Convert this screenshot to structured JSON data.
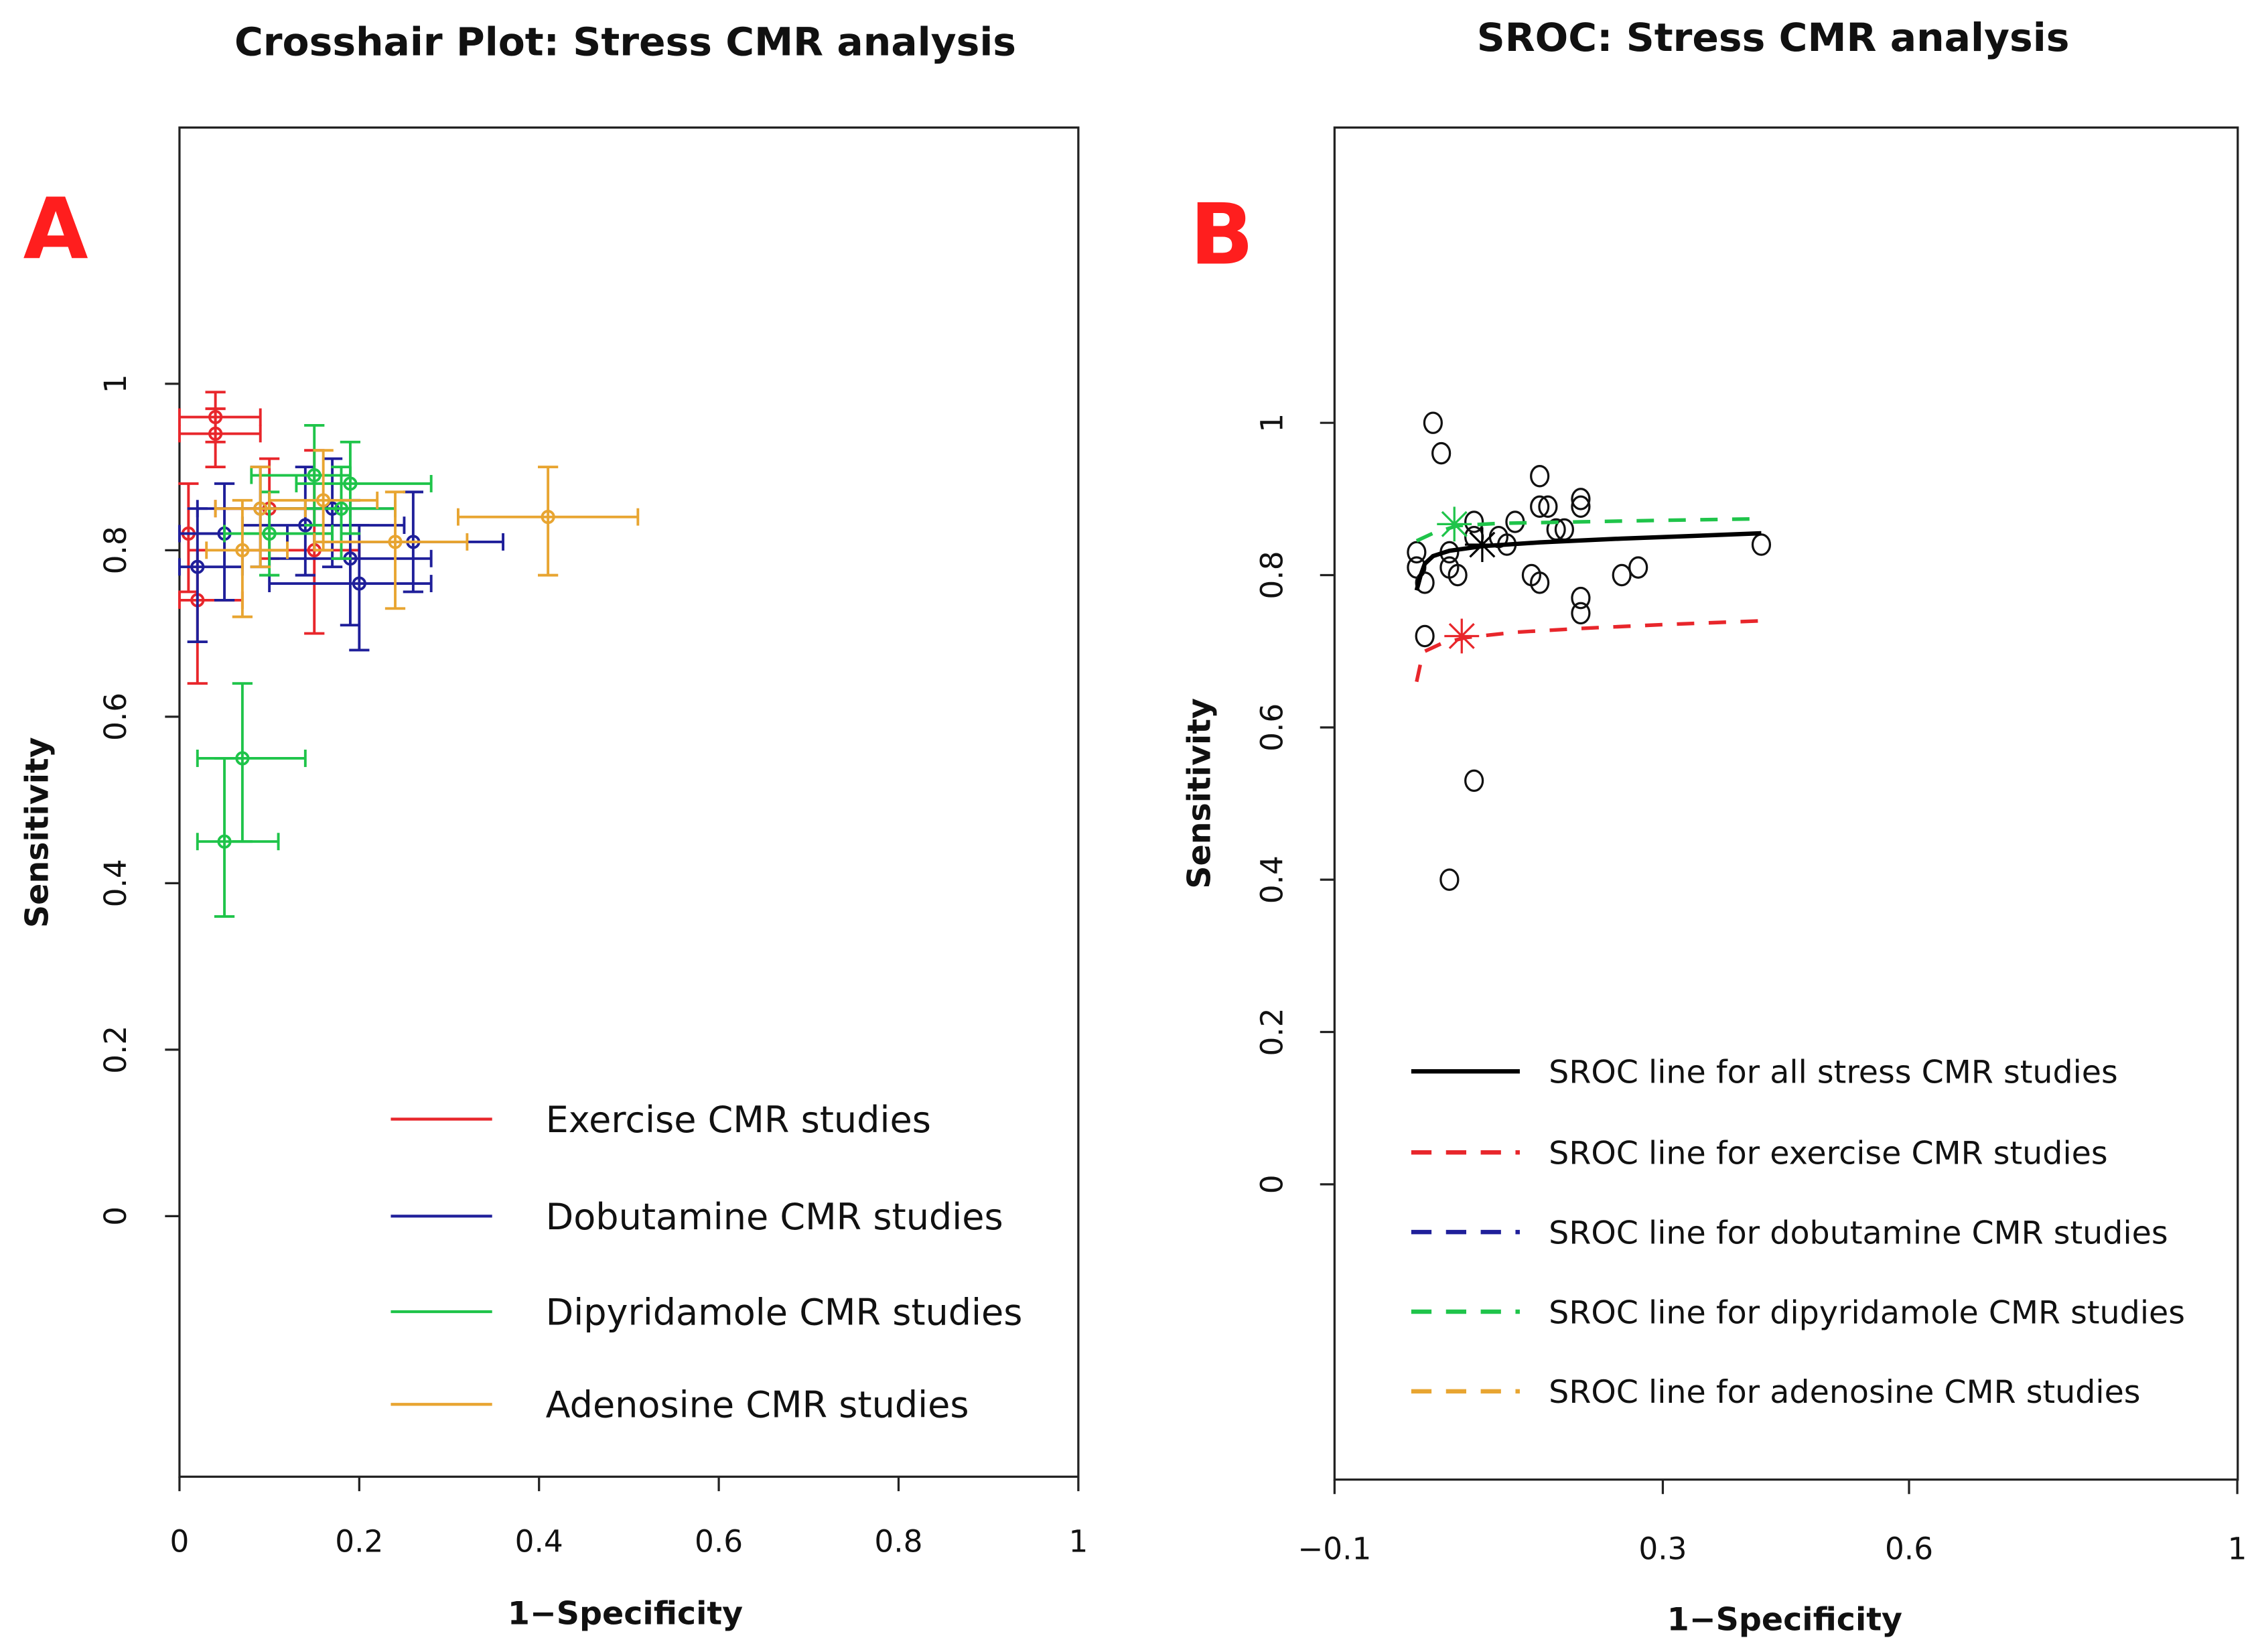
{
  "chart_data": [
    {
      "type": "scatter",
      "panel_label": "A",
      "title": "Crosshair Plot: Stress CMR analysis",
      "xlabel": "1−Specificity",
      "ylabel": "Sensitivity",
      "xlim": [
        0,
        1
      ],
      "ylim": [
        -0.3,
        1.3
      ],
      "xticks": [
        "0",
        "0.2",
        "0.4",
        "0.6",
        "0.8",
        "1"
      ],
      "xtick_values": [
        0,
        0.2,
        0.4,
        0.6,
        0.8,
        1
      ],
      "yticks": [
        "0",
        "0.2",
        "0.4",
        "0.6",
        "0.8",
        "1"
      ],
      "ytick_values": [
        0,
        0.2,
        0.4,
        0.6,
        0.8,
        1
      ],
      "legend_position": "bottom-right",
      "series": [
        {
          "name": "Exercise CMR studies",
          "color": "#e8262b",
          "points": [
            {
              "x": 0.04,
              "y": 0.96,
              "xci": [
                0.0,
                0.09
              ],
              "yci": [
                0.93,
                0.99
              ]
            },
            {
              "x": 0.04,
              "y": 0.94,
              "xci": [
                0.0,
                0.09
              ],
              "yci": [
                0.9,
                0.97
              ]
            },
            {
              "x": 0.15,
              "y": 0.8,
              "xci": [
                0.07,
                0.2
              ],
              "yci": [
                0.7,
                0.92
              ]
            },
            {
              "x": 0.02,
              "y": 0.74,
              "xci": [
                0.0,
                0.07
              ],
              "yci": [
                0.64,
                0.8
              ]
            },
            {
              "x": 0.1,
              "y": 0.85,
              "xci": [
                0.04,
                0.19
              ],
              "yci": [
                0.79,
                0.91
              ]
            },
            {
              "x": 0.01,
              "y": 0.82,
              "xci": [
                0.0,
                0.05
              ],
              "yci": [
                0.75,
                0.88
              ]
            }
          ]
        },
        {
          "name": "Dobutamine CMR studies",
          "color": "#1f1f9a",
          "points": [
            {
              "x": 0.05,
              "y": 0.82,
              "xci": [
                0.0,
                0.12
              ],
              "yci": [
                0.74,
                0.88
              ]
            },
            {
              "x": 0.09,
              "y": 0.85,
              "xci": [
                0.02,
                0.18
              ],
              "yci": [
                0.78,
                0.9
              ]
            },
            {
              "x": 0.17,
              "y": 0.85,
              "xci": [
                0.1,
                0.24
              ],
              "yci": [
                0.78,
                0.91
              ]
            },
            {
              "x": 0.26,
              "y": 0.81,
              "xci": [
                0.15,
                0.36
              ],
              "yci": [
                0.75,
                0.87
              ]
            },
            {
              "x": 0.19,
              "y": 0.79,
              "xci": [
                0.1,
                0.28
              ],
              "yci": [
                0.71,
                0.86
              ]
            },
            {
              "x": 0.2,
              "y": 0.76,
              "xci": [
                0.1,
                0.28
              ],
              "yci": [
                0.68,
                0.83
              ]
            },
            {
              "x": 0.02,
              "y": 0.78,
              "xci": [
                0.0,
                0.07
              ],
              "yci": [
                0.69,
                0.85
              ]
            },
            {
              "x": 0.14,
              "y": 0.83,
              "xci": [
                0.07,
                0.25
              ],
              "yci": [
                0.77,
                0.9
              ]
            }
          ]
        },
        {
          "name": "Dipyridamole CMR studies",
          "color": "#1fc44a",
          "points": [
            {
              "x": 0.07,
              "y": 0.55,
              "xci": [
                0.02,
                0.14
              ],
              "yci": [
                0.45,
                0.64
              ]
            },
            {
              "x": 0.05,
              "y": 0.45,
              "xci": [
                0.02,
                0.11
              ],
              "yci": [
                0.36,
                0.55
              ]
            },
            {
              "x": 0.15,
              "y": 0.89,
              "xci": [
                0.08,
                0.19
              ],
              "yci": [
                0.83,
                0.95
              ]
            },
            {
              "x": 0.19,
              "y": 0.88,
              "xci": [
                0.13,
                0.28
              ],
              "yci": [
                0.82,
                0.93
              ]
            },
            {
              "x": 0.18,
              "y": 0.85,
              "xci": [
                0.1,
                0.24
              ],
              "yci": [
                0.79,
                0.9
              ]
            },
            {
              "x": 0.1,
              "y": 0.82,
              "xci": [
                0.05,
                0.17
              ],
              "yci": [
                0.77,
                0.87
              ]
            }
          ]
        },
        {
          "name": "Adenosine CMR studies",
          "color": "#e8a531",
          "points": [
            {
              "x": 0.41,
              "y": 0.84,
              "xci": [
                0.31,
                0.51
              ],
              "yci": [
                0.77,
                0.9
              ]
            },
            {
              "x": 0.24,
              "y": 0.81,
              "xci": [
                0.15,
                0.32
              ],
              "yci": [
                0.73,
                0.87
              ]
            },
            {
              "x": 0.07,
              "y": 0.8,
              "xci": [
                0.03,
                0.12
              ],
              "yci": [
                0.72,
                0.86
              ]
            },
            {
              "x": 0.09,
              "y": 0.85,
              "xci": [
                0.04,
                0.14
              ],
              "yci": [
                0.78,
                0.9
              ]
            },
            {
              "x": 0.16,
              "y": 0.86,
              "xci": [
                0.1,
                0.22
              ],
              "yci": [
                0.8,
                0.92
              ]
            }
          ]
        }
      ]
    },
    {
      "type": "line",
      "panel_label": "B",
      "title": "SROC: Stress CMR analysis",
      "xlabel": "1−Specificity",
      "ylabel": "Sensitivity",
      "xlim": [
        -0.1,
        1
      ],
      "ylim": [
        -0.39,
        1.39
      ],
      "xticks": [
        "−0.1",
        "0.3",
        "0.6",
        "1"
      ],
      "xtick_values": [
        -0.1,
        0.3,
        0.6,
        1
      ],
      "yticks": [
        "0",
        "0.2",
        "0.4",
        "0.6",
        "0.8",
        "1"
      ],
      "ytick_values": [
        0,
        0.2,
        0.4,
        0.6,
        0.8,
        1
      ],
      "legend_position": "bottom-right",
      "study_points": [
        [
          0.02,
          1.0
        ],
        [
          0.03,
          0.96
        ],
        [
          0.04,
          0.4
        ],
        [
          0.07,
          0.53
        ],
        [
          0.01,
          0.72
        ],
        [
          0.0,
          0.83
        ],
        [
          0.0,
          0.81
        ],
        [
          0.01,
          0.79
        ],
        [
          0.04,
          0.83
        ],
        [
          0.04,
          0.81
        ],
        [
          0.05,
          0.8
        ],
        [
          0.07,
          0.87
        ],
        [
          0.11,
          0.84
        ],
        [
          0.12,
          0.87
        ],
        [
          0.15,
          0.93
        ],
        [
          0.15,
          0.89
        ],
        [
          0.16,
          0.89
        ],
        [
          0.17,
          0.86
        ],
        [
          0.18,
          0.86
        ],
        [
          0.14,
          0.8
        ],
        [
          0.15,
          0.79
        ],
        [
          0.2,
          0.9
        ],
        [
          0.2,
          0.89
        ],
        [
          0.2,
          0.77
        ],
        [
          0.2,
          0.75
        ],
        [
          0.25,
          0.8
        ],
        [
          0.27,
          0.81
        ],
        [
          0.42,
          0.84
        ],
        [
          0.07,
          0.85
        ],
        [
          0.1,
          0.85
        ]
      ],
      "series": [
        {
          "name": "SROC line for all stress CMR studies",
          "color": "#000000",
          "dash": false,
          "x": [
            0.0,
            0.005,
            0.01,
            0.02,
            0.04,
            0.08,
            0.15,
            0.25,
            0.35,
            0.42
          ],
          "y": [
            0.78,
            0.8,
            0.815,
            0.825,
            0.832,
            0.838,
            0.843,
            0.848,
            0.852,
            0.855
          ],
          "summary": [
            0.08,
            0.84
          ]
        },
        {
          "name": "SROC line for exercise CMR studies",
          "color": "#e8262b",
          "dash": true,
          "x": [
            0.0,
            0.005,
            0.01,
            0.03,
            0.06,
            0.12,
            0.2,
            0.3,
            0.42
          ],
          "y": [
            0.66,
            0.685,
            0.7,
            0.71,
            0.718,
            0.725,
            0.73,
            0.735,
            0.74
          ],
          "summary": [
            0.055,
            0.72
          ]
        },
        {
          "name": "SROC line for dobutamine CMR studies",
          "color": "#1f1f9a",
          "dash": true,
          "x": [],
          "y": []
        },
        {
          "name": "SROC line for dipyridamole CMR studies",
          "color": "#1fc44a",
          "dash": true,
          "x": [
            0.0,
            0.02,
            0.05,
            0.1,
            0.2,
            0.3,
            0.42
          ],
          "y": [
            0.845,
            0.855,
            0.865,
            0.868,
            0.87,
            0.872,
            0.874
          ],
          "summary": [
            0.046,
            0.867
          ]
        },
        {
          "name": "SROC line for adenosine CMR studies",
          "color": "#e8a531",
          "dash": true,
          "x": [],
          "y": []
        }
      ]
    }
  ]
}
